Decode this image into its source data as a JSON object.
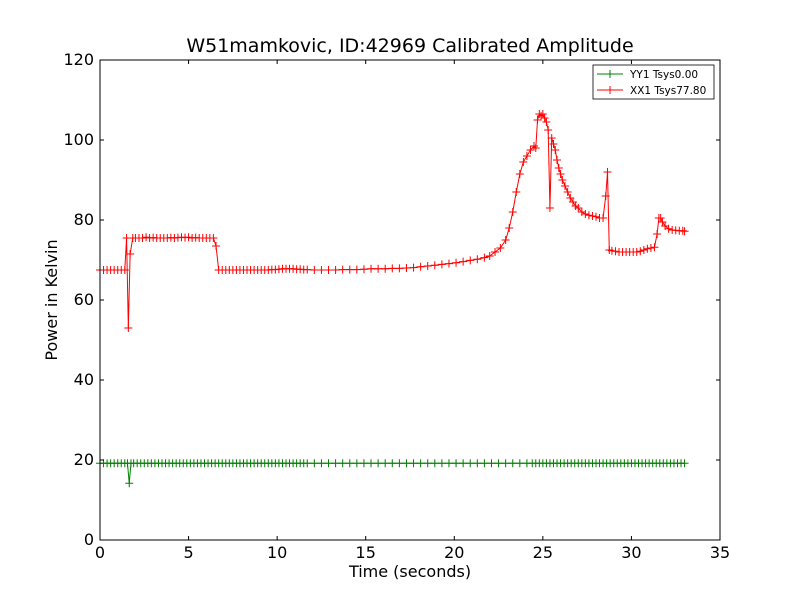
{
  "chart_data": {
    "type": "line",
    "title": "W51mamkovic, ID:42969 Calibrated Amplitude",
    "xlabel": "Time (seconds)",
    "ylabel": "Power in Kelvin",
    "xlim": [
      0,
      35
    ],
    "ylim": [
      0,
      120
    ],
    "xticks": [
      0,
      5,
      10,
      15,
      20,
      25,
      30,
      35
    ],
    "yticks": [
      0,
      20,
      40,
      60,
      80,
      100,
      120
    ],
    "xtick_labels": [
      "0",
      "5",
      "10",
      "15",
      "20",
      "25",
      "30",
      "35"
    ],
    "ytick_labels": [
      "0",
      "20",
      "40",
      "60",
      "80",
      "100",
      "120"
    ],
    "grid": false,
    "legend_position": "top-right",
    "marker": "plus",
    "series": [
      {
        "name": "YY1 Tsys0.00",
        "color": "#008000",
        "points": [
          [
            0.0,
            19.2
          ],
          [
            0.2,
            19.2
          ],
          [
            0.4,
            19.2
          ],
          [
            0.6,
            19.2
          ],
          [
            0.8,
            19.2
          ],
          [
            1.0,
            19.2
          ],
          [
            1.2,
            19.2
          ],
          [
            1.4,
            19.2
          ],
          [
            1.55,
            19.2
          ],
          [
            1.65,
            14.2
          ],
          [
            1.75,
            19.2
          ],
          [
            1.9,
            19.2
          ],
          [
            2.1,
            19.2
          ],
          [
            2.3,
            19.2
          ],
          [
            2.5,
            19.2
          ],
          [
            2.7,
            19.2
          ],
          [
            2.9,
            19.2
          ],
          [
            3.1,
            19.2
          ],
          [
            3.3,
            19.2
          ],
          [
            3.5,
            19.2
          ],
          [
            3.7,
            19.2
          ],
          [
            3.9,
            19.2
          ],
          [
            4.1,
            19.2
          ],
          [
            4.3,
            19.2
          ],
          [
            4.5,
            19.2
          ],
          [
            4.7,
            19.2
          ],
          [
            4.9,
            19.2
          ],
          [
            5.1,
            19.2
          ],
          [
            5.3,
            19.2
          ],
          [
            5.5,
            19.2
          ],
          [
            5.7,
            19.2
          ],
          [
            5.9,
            19.2
          ],
          [
            6.1,
            19.2
          ],
          [
            6.3,
            19.2
          ],
          [
            6.5,
            19.2
          ],
          [
            6.7,
            19.2
          ],
          [
            6.9,
            19.2
          ],
          [
            7.1,
            19.2
          ],
          [
            7.3,
            19.2
          ],
          [
            7.5,
            19.2
          ],
          [
            7.7,
            19.2
          ],
          [
            7.9,
            19.2
          ],
          [
            8.1,
            19.2
          ],
          [
            8.3,
            19.2
          ],
          [
            8.5,
            19.2
          ],
          [
            8.7,
            19.2
          ],
          [
            8.9,
            19.2
          ],
          [
            9.1,
            19.2
          ],
          [
            9.3,
            19.2
          ],
          [
            9.5,
            19.2
          ],
          [
            9.7,
            19.2
          ],
          [
            9.9,
            19.2
          ],
          [
            10.1,
            19.2
          ],
          [
            10.3,
            19.2
          ],
          [
            10.5,
            19.2
          ],
          [
            10.7,
            19.2
          ],
          [
            10.9,
            19.2
          ],
          [
            11.1,
            19.2
          ],
          [
            11.3,
            19.2
          ],
          [
            11.5,
            19.2
          ],
          [
            11.7,
            19.2
          ],
          [
            12.1,
            19.2
          ],
          [
            12.5,
            19.2
          ],
          [
            12.9,
            19.2
          ],
          [
            13.3,
            19.2
          ],
          [
            13.7,
            19.2
          ],
          [
            14.1,
            19.2
          ],
          [
            14.5,
            19.2
          ],
          [
            14.9,
            19.2
          ],
          [
            15.3,
            19.2
          ],
          [
            15.7,
            19.2
          ],
          [
            16.1,
            19.2
          ],
          [
            16.5,
            19.2
          ],
          [
            16.9,
            19.2
          ],
          [
            17.3,
            19.2
          ],
          [
            17.7,
            19.2
          ],
          [
            18.1,
            19.2
          ],
          [
            18.5,
            19.2
          ],
          [
            18.9,
            19.2
          ],
          [
            19.3,
            19.2
          ],
          [
            19.7,
            19.2
          ],
          [
            20.1,
            19.2
          ],
          [
            20.5,
            19.2
          ],
          [
            20.9,
            19.2
          ],
          [
            21.3,
            19.2
          ],
          [
            21.7,
            19.2
          ],
          [
            22.1,
            19.2
          ],
          [
            22.5,
            19.2
          ],
          [
            22.9,
            19.2
          ],
          [
            23.3,
            19.2
          ],
          [
            23.7,
            19.2
          ],
          [
            24.1,
            19.2
          ],
          [
            24.4,
            19.2
          ],
          [
            24.6,
            19.2
          ],
          [
            24.8,
            19.2
          ],
          [
            25.0,
            19.2
          ],
          [
            25.2,
            19.2
          ],
          [
            25.4,
            19.2
          ],
          [
            25.6,
            19.2
          ],
          [
            25.8,
            19.2
          ],
          [
            26.0,
            19.2
          ],
          [
            26.2,
            19.2
          ],
          [
            26.4,
            19.2
          ],
          [
            26.6,
            19.2
          ],
          [
            26.8,
            19.2
          ],
          [
            27.0,
            19.2
          ],
          [
            27.2,
            19.2
          ],
          [
            27.4,
            19.2
          ],
          [
            27.6,
            19.2
          ],
          [
            27.8,
            19.2
          ],
          [
            28.0,
            19.2
          ],
          [
            28.2,
            19.2
          ],
          [
            28.4,
            19.2
          ],
          [
            28.6,
            19.2
          ],
          [
            28.8,
            19.2
          ],
          [
            29.0,
            19.2
          ],
          [
            29.2,
            19.2
          ],
          [
            29.4,
            19.2
          ],
          [
            29.6,
            19.2
          ],
          [
            29.8,
            19.2
          ],
          [
            30.0,
            19.2
          ],
          [
            30.2,
            19.2
          ],
          [
            30.4,
            19.2
          ],
          [
            30.6,
            19.2
          ],
          [
            30.8,
            19.2
          ],
          [
            31.0,
            19.2
          ],
          [
            31.2,
            19.2
          ],
          [
            31.4,
            19.2
          ],
          [
            31.6,
            19.2
          ],
          [
            31.8,
            19.2
          ],
          [
            32.0,
            19.2
          ],
          [
            32.2,
            19.2
          ],
          [
            32.4,
            19.2
          ],
          [
            32.6,
            19.2
          ],
          [
            32.8,
            19.2
          ],
          [
            33.0,
            19.2
          ]
        ]
      },
      {
        "name": "XX1 Tsys77.80",
        "color": "#ff0000",
        "points": [
          [
            0.0,
            67.5
          ],
          [
            0.2,
            67.5
          ],
          [
            0.4,
            67.5
          ],
          [
            0.6,
            67.5
          ],
          [
            0.8,
            67.5
          ],
          [
            1.0,
            67.5
          ],
          [
            1.2,
            67.5
          ],
          [
            1.4,
            67.5
          ],
          [
            1.5,
            75.5
          ],
          [
            1.6,
            53.0
          ],
          [
            1.7,
            71.5
          ],
          [
            1.85,
            75.5
          ],
          [
            2.0,
            75.5
          ],
          [
            2.2,
            75.5
          ],
          [
            2.4,
            75.5
          ],
          [
            2.6,
            75.7
          ],
          [
            2.8,
            75.5
          ],
          [
            3.0,
            75.6
          ],
          [
            3.2,
            75.5
          ],
          [
            3.4,
            75.5
          ],
          [
            3.6,
            75.5
          ],
          [
            3.8,
            75.5
          ],
          [
            4.0,
            75.6
          ],
          [
            4.2,
            75.5
          ],
          [
            4.4,
            75.6
          ],
          [
            4.6,
            75.7
          ],
          [
            4.8,
            75.6
          ],
          [
            5.0,
            75.7
          ],
          [
            5.2,
            75.5
          ],
          [
            5.4,
            75.6
          ],
          [
            5.6,
            75.5
          ],
          [
            5.8,
            75.5
          ],
          [
            6.0,
            75.5
          ],
          [
            6.2,
            75.5
          ],
          [
            6.4,
            75.5
          ],
          [
            6.55,
            73.5
          ],
          [
            6.7,
            67.5
          ],
          [
            6.9,
            67.5
          ],
          [
            7.1,
            67.5
          ],
          [
            7.3,
            67.5
          ],
          [
            7.5,
            67.5
          ],
          [
            7.7,
            67.5
          ],
          [
            7.9,
            67.5
          ],
          [
            8.1,
            67.5
          ],
          [
            8.3,
            67.5
          ],
          [
            8.5,
            67.5
          ],
          [
            8.7,
            67.5
          ],
          [
            8.9,
            67.5
          ],
          [
            9.1,
            67.5
          ],
          [
            9.3,
            67.5
          ],
          [
            9.5,
            67.5
          ],
          [
            9.7,
            67.6
          ],
          [
            9.9,
            67.6
          ],
          [
            10.1,
            67.7
          ],
          [
            10.3,
            67.8
          ],
          [
            10.5,
            67.8
          ],
          [
            10.7,
            67.8
          ],
          [
            10.9,
            67.8
          ],
          [
            11.1,
            67.7
          ],
          [
            11.3,
            67.7
          ],
          [
            11.5,
            67.6
          ],
          [
            11.7,
            67.6
          ],
          [
            12.1,
            67.5
          ],
          [
            12.5,
            67.5
          ],
          [
            12.9,
            67.5
          ],
          [
            13.3,
            67.5
          ],
          [
            13.7,
            67.6
          ],
          [
            14.1,
            67.6
          ],
          [
            14.5,
            67.6
          ],
          [
            14.9,
            67.7
          ],
          [
            15.3,
            67.8
          ],
          [
            15.7,
            67.8
          ],
          [
            16.1,
            67.8
          ],
          [
            16.5,
            67.9
          ],
          [
            16.9,
            67.9
          ],
          [
            17.3,
            68.0
          ],
          [
            17.7,
            68.1
          ],
          [
            18.1,
            68.3
          ],
          [
            18.5,
            68.5
          ],
          [
            18.9,
            68.7
          ],
          [
            19.3,
            68.9
          ],
          [
            19.7,
            69.1
          ],
          [
            20.1,
            69.3
          ],
          [
            20.5,
            69.6
          ],
          [
            20.9,
            69.9
          ],
          [
            21.3,
            70.2
          ],
          [
            21.7,
            70.6
          ],
          [
            22.0,
            71.0
          ],
          [
            22.3,
            72.0
          ],
          [
            22.6,
            73.0
          ],
          [
            22.9,
            75.0
          ],
          [
            23.1,
            78.0
          ],
          [
            23.3,
            82.0
          ],
          [
            23.5,
            87.0
          ],
          [
            23.7,
            91.5
          ],
          [
            23.9,
            94.5
          ],
          [
            24.1,
            96.0
          ],
          [
            24.3,
            97.5
          ],
          [
            24.5,
            98.5
          ],
          [
            24.6,
            98.0
          ],
          [
            24.7,
            105.0
          ],
          [
            24.8,
            106.5
          ],
          [
            24.9,
            106.0
          ],
          [
            25.0,
            106.5
          ],
          [
            25.1,
            105.5
          ],
          [
            25.2,
            104.5
          ],
          [
            25.3,
            102.5
          ],
          [
            25.4,
            83.0
          ],
          [
            25.5,
            100.5
          ],
          [
            25.6,
            99.0
          ],
          [
            25.7,
            97.5
          ],
          [
            25.8,
            95.0
          ],
          [
            25.9,
            93.0
          ],
          [
            26.0,
            91.5
          ],
          [
            26.1,
            90.0
          ],
          [
            26.25,
            88.5
          ],
          [
            26.4,
            87.0
          ],
          [
            26.55,
            85.5
          ],
          [
            26.7,
            84.5
          ],
          [
            26.85,
            83.5
          ],
          [
            27.0,
            83.0
          ],
          [
            27.2,
            82.0
          ],
          [
            27.4,
            81.5
          ],
          [
            27.6,
            81.2
          ],
          [
            27.8,
            81.0
          ],
          [
            28.0,
            80.8
          ],
          [
            28.2,
            80.5
          ],
          [
            28.4,
            80.5
          ],
          [
            28.55,
            86.0
          ],
          [
            28.65,
            92.0
          ],
          [
            28.75,
            72.5
          ],
          [
            28.9,
            72.3
          ],
          [
            29.1,
            72.2
          ],
          [
            29.3,
            72.0
          ],
          [
            29.5,
            72.0
          ],
          [
            29.7,
            72.0
          ],
          [
            29.9,
            72.0
          ],
          [
            30.1,
            72.0
          ],
          [
            30.3,
            72.0
          ],
          [
            30.5,
            72.2
          ],
          [
            30.7,
            72.5
          ],
          [
            30.9,
            72.8
          ],
          [
            31.1,
            73.0
          ],
          [
            31.3,
            73.2
          ],
          [
            31.45,
            76.5
          ],
          [
            31.55,
            80.5
          ],
          [
            31.65,
            80.5
          ],
          [
            31.75,
            79.5
          ],
          [
            31.9,
            78.5
          ],
          [
            32.1,
            77.8
          ],
          [
            32.3,
            77.5
          ],
          [
            32.5,
            77.4
          ],
          [
            32.7,
            77.3
          ],
          [
            32.9,
            77.3
          ],
          [
            33.0,
            77.2
          ]
        ]
      }
    ]
  }
}
